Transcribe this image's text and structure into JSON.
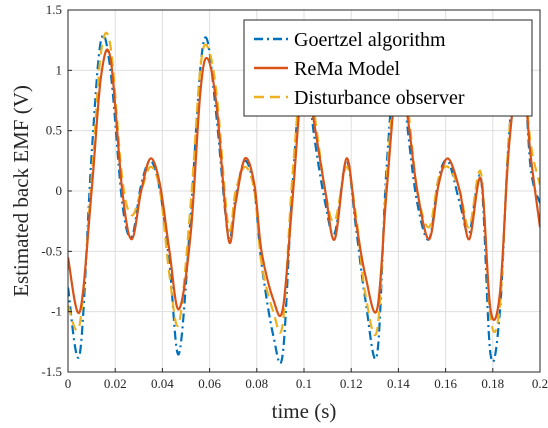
{
  "chart_data": {
    "type": "line",
    "xlabel": "time (s)",
    "ylabel": "Estimated back EMF (V)",
    "xlim": [
      0,
      0.2
    ],
    "ylim": [
      -1.5,
      1.5
    ],
    "xticks": [
      0,
      0.02,
      0.04,
      0.06,
      0.08,
      0.1,
      0.12,
      0.14,
      0.16,
      0.18,
      0.2
    ],
    "xtick_labels": [
      "0",
      "0.02",
      "0.04",
      "0.06",
      "0.08",
      "0.1",
      "0.12",
      "0.14",
      "0.16",
      "0.18",
      "0.2"
    ],
    "yticks": [
      -1.5,
      -1,
      -0.5,
      0,
      0.5,
      1,
      1.5
    ],
    "ytick_labels": [
      "-1.5",
      "-1",
      "-0.5",
      "0",
      "0.5",
      "1",
      "1.5"
    ],
    "grid": true,
    "legend_position": "top-right",
    "series": [
      {
        "name": "Goertzel algorithm",
        "color": "#0072BD",
        "dash": "dash-dot",
        "x": [
          0.0,
          0.005,
          0.01,
          0.014,
          0.018,
          0.023,
          0.027,
          0.031,
          0.035,
          0.039,
          0.043,
          0.047,
          0.052,
          0.056,
          0.059,
          0.063,
          0.068,
          0.071,
          0.075,
          0.079,
          0.082,
          0.087,
          0.091,
          0.095,
          0.1,
          0.104,
          0.109,
          0.113,
          0.118,
          0.122,
          0.126,
          0.131,
          0.135,
          0.14,
          0.144,
          0.148,
          0.153,
          0.157,
          0.161,
          0.166,
          0.17,
          0.175,
          0.179,
          0.183,
          0.187,
          0.192,
          0.196,
          0.2
        ],
        "y": [
          -0.8,
          -1.35,
          0.3,
          1.25,
          1.0,
          -0.1,
          -0.38,
          0.05,
          0.25,
          0.0,
          -0.6,
          -1.35,
          -0.2,
          1.0,
          1.25,
          0.6,
          -0.38,
          -0.05,
          0.25,
          0.0,
          -0.6,
          -1.2,
          -1.35,
          0.0,
          1.2,
          0.5,
          -0.1,
          -0.35,
          0.25,
          -0.3,
          -0.9,
          -1.35,
          0.2,
          1.25,
          0.5,
          -0.1,
          -0.4,
          0.1,
          0.25,
          -0.1,
          -0.35,
          0.1,
          -1.35,
          -1.0,
          0.5,
          1.25,
          0.2,
          -0.1
        ]
      },
      {
        "name": "ReMa Model",
        "color": "#D95319",
        "dash": "solid",
        "x": [
          0.0,
          0.005,
          0.01,
          0.014,
          0.018,
          0.023,
          0.027,
          0.031,
          0.035,
          0.039,
          0.043,
          0.047,
          0.052,
          0.056,
          0.059,
          0.063,
          0.068,
          0.071,
          0.075,
          0.079,
          0.082,
          0.087,
          0.091,
          0.095,
          0.1,
          0.104,
          0.109,
          0.113,
          0.118,
          0.122,
          0.126,
          0.131,
          0.135,
          0.14,
          0.144,
          0.148,
          0.153,
          0.157,
          0.161,
          0.166,
          0.17,
          0.175,
          0.179,
          0.183,
          0.187,
          0.192,
          0.196,
          0.2
        ],
        "y": [
          -0.55,
          -1.0,
          0.0,
          0.95,
          1.1,
          0.0,
          -0.4,
          0.0,
          0.27,
          0.05,
          -0.5,
          -0.98,
          -0.35,
          0.8,
          1.1,
          0.7,
          -0.4,
          -0.1,
          0.27,
          0.05,
          -0.5,
          -0.9,
          -0.98,
          -0.1,
          1.05,
          0.6,
          0.0,
          -0.4,
          0.27,
          -0.25,
          -0.7,
          -0.98,
          0.0,
          1.05,
          0.6,
          0.0,
          -0.4,
          0.05,
          0.27,
          0.0,
          -0.4,
          0.1,
          -0.98,
          -0.85,
          0.4,
          1.08,
          0.3,
          -0.3
        ]
      },
      {
        "name": "Disturbance observer",
        "color": "#EDB120",
        "dash": "dashed",
        "x": [
          0.0,
          0.005,
          0.01,
          0.014,
          0.018,
          0.023,
          0.027,
          0.031,
          0.035,
          0.039,
          0.043,
          0.047,
          0.052,
          0.056,
          0.059,
          0.063,
          0.068,
          0.071,
          0.075,
          0.079,
          0.082,
          0.087,
          0.091,
          0.095,
          0.1,
          0.104,
          0.109,
          0.113,
          0.118,
          0.122,
          0.126,
          0.131,
          0.135,
          0.14,
          0.144,
          0.148,
          0.153,
          0.157,
          0.161,
          0.166,
          0.17,
          0.175,
          0.179,
          0.183,
          0.187,
          0.192,
          0.196,
          0.2
        ],
        "y": [
          -0.95,
          -1.1,
          0.1,
          1.15,
          1.2,
          0.1,
          -0.2,
          0.0,
          0.2,
          0.0,
          -0.7,
          -1.1,
          -0.1,
          1.0,
          1.2,
          0.8,
          -0.3,
          0.0,
          0.2,
          0.0,
          -0.6,
          -1.0,
          -1.1,
          0.1,
          1.15,
          0.7,
          0.0,
          -0.25,
          0.2,
          -0.2,
          -0.85,
          -1.15,
          0.1,
          1.15,
          0.7,
          0.0,
          -0.3,
          0.1,
          0.2,
          0.0,
          -0.3,
          0.15,
          -1.05,
          -0.95,
          0.5,
          1.15,
          0.4,
          0.05
        ]
      }
    ]
  }
}
